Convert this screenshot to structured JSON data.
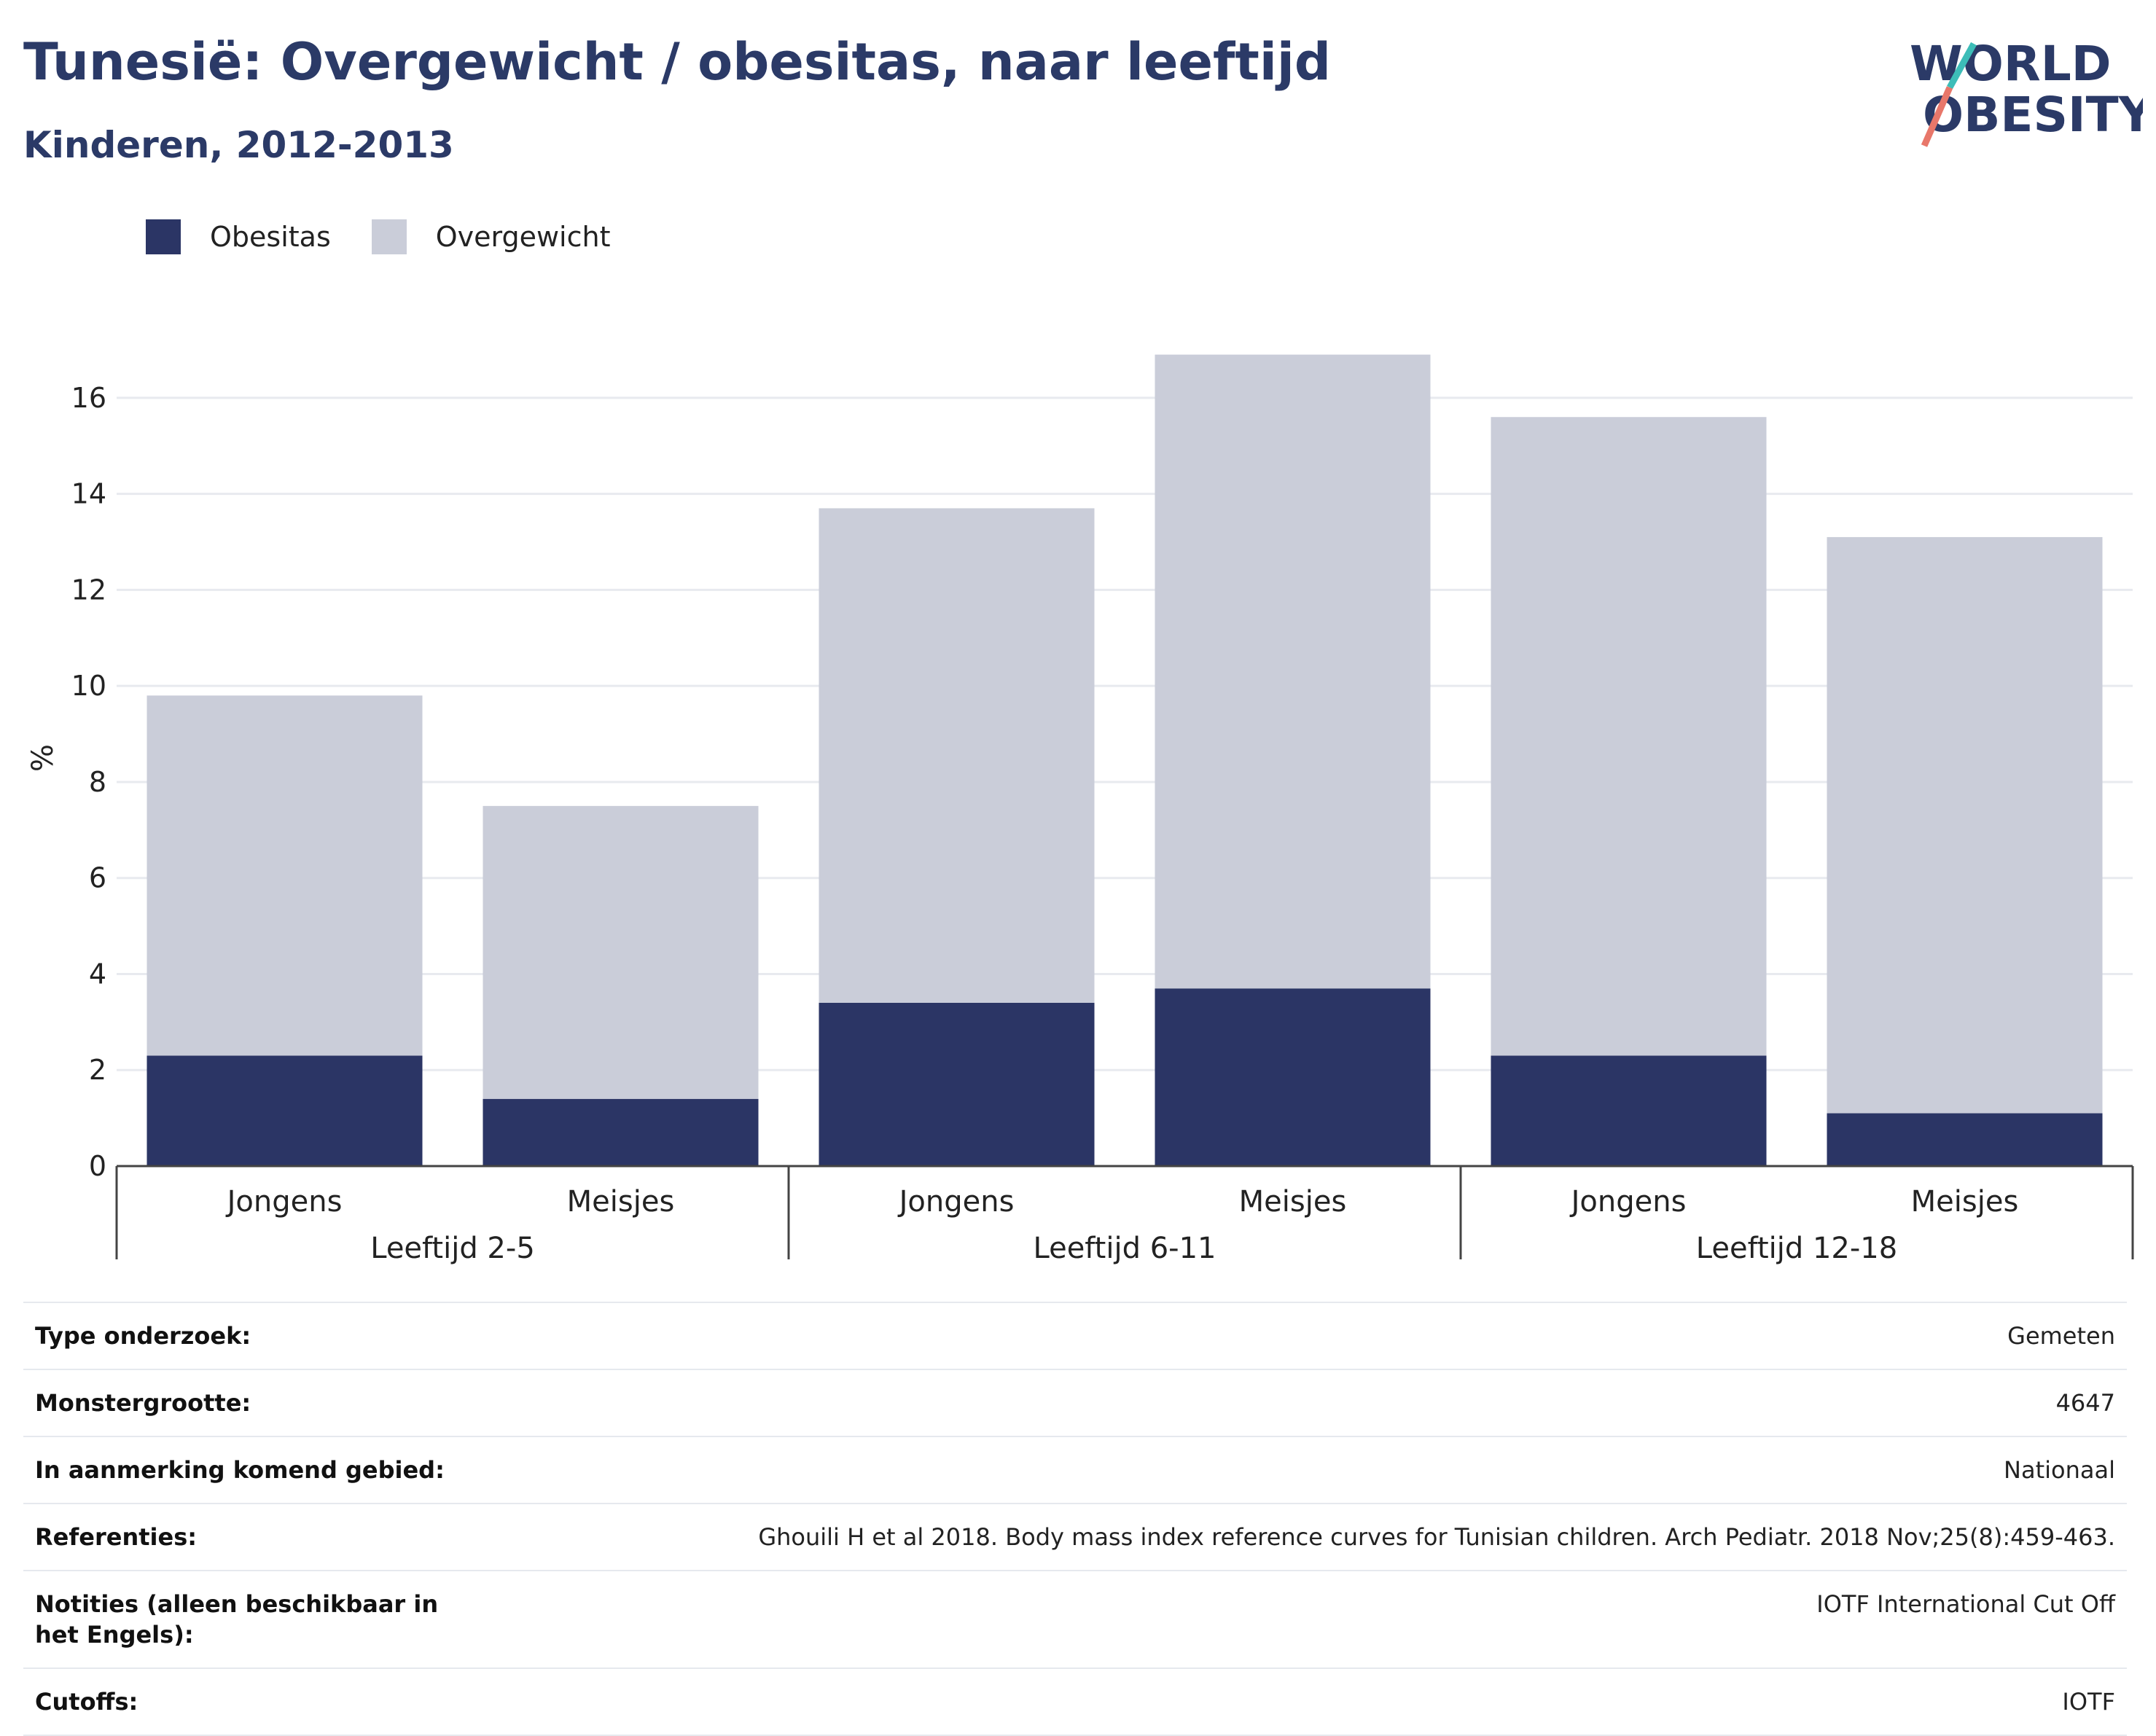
{
  "header": {
    "title": "Tunesië: Overgewicht / obesitas, naar leeftijd",
    "subtitle": "Kinderen, 2012-2013"
  },
  "logo": {
    "line1": "WORLD",
    "line2": "OBESITY"
  },
  "legend": {
    "items": [
      {
        "label": "Obesitas",
        "color": "#2b3565"
      },
      {
        "label": "Overgewicht",
        "color": "#cacdd9"
      }
    ]
  },
  "chart_data": {
    "type": "bar",
    "stacked": true,
    "ylabel": "%",
    "ylim": [
      0,
      17
    ],
    "yticks": [
      0,
      2,
      4,
      6,
      8,
      10,
      12,
      14,
      16
    ],
    "grid": true,
    "legend_position": "top-left",
    "groups": [
      "Leeftijd 2-5",
      "Leeftijd 6-11",
      "Leeftijd 12-18"
    ],
    "categories": [
      "Jongens",
      "Meisjes",
      "Jongens",
      "Meisjes",
      "Jongens",
      "Meisjes"
    ],
    "category_group": [
      0,
      0,
      1,
      1,
      2,
      2
    ],
    "series": [
      {
        "name": "Obesitas",
        "values": [
          2.3,
          1.4,
          3.4,
          3.7,
          2.3,
          1.1
        ],
        "color": "#2b3565"
      },
      {
        "name": "Overgewicht",
        "values": [
          7.5,
          6.1,
          10.3,
          13.2,
          13.3,
          12.0
        ],
        "color": "#cacdd9"
      }
    ]
  },
  "info_table": [
    {
      "label": "Type onderzoek:",
      "value": "Gemeten"
    },
    {
      "label": "Monstergrootte:",
      "value": "4647"
    },
    {
      "label": "In aanmerking komend gebied:",
      "value": "Nationaal"
    },
    {
      "label": "Referenties:",
      "value": "Ghouili H et al 2018. Body mass index reference curves for Tunisian children. Arch Pediatr. 2018 Nov;25(8):459-463."
    },
    {
      "label": "Notities (alleen beschikbaar in het Engels):",
      "value": "IOTF International Cut Off"
    },
    {
      "label": "Cutoffs:",
      "value": "IOTF"
    }
  ]
}
